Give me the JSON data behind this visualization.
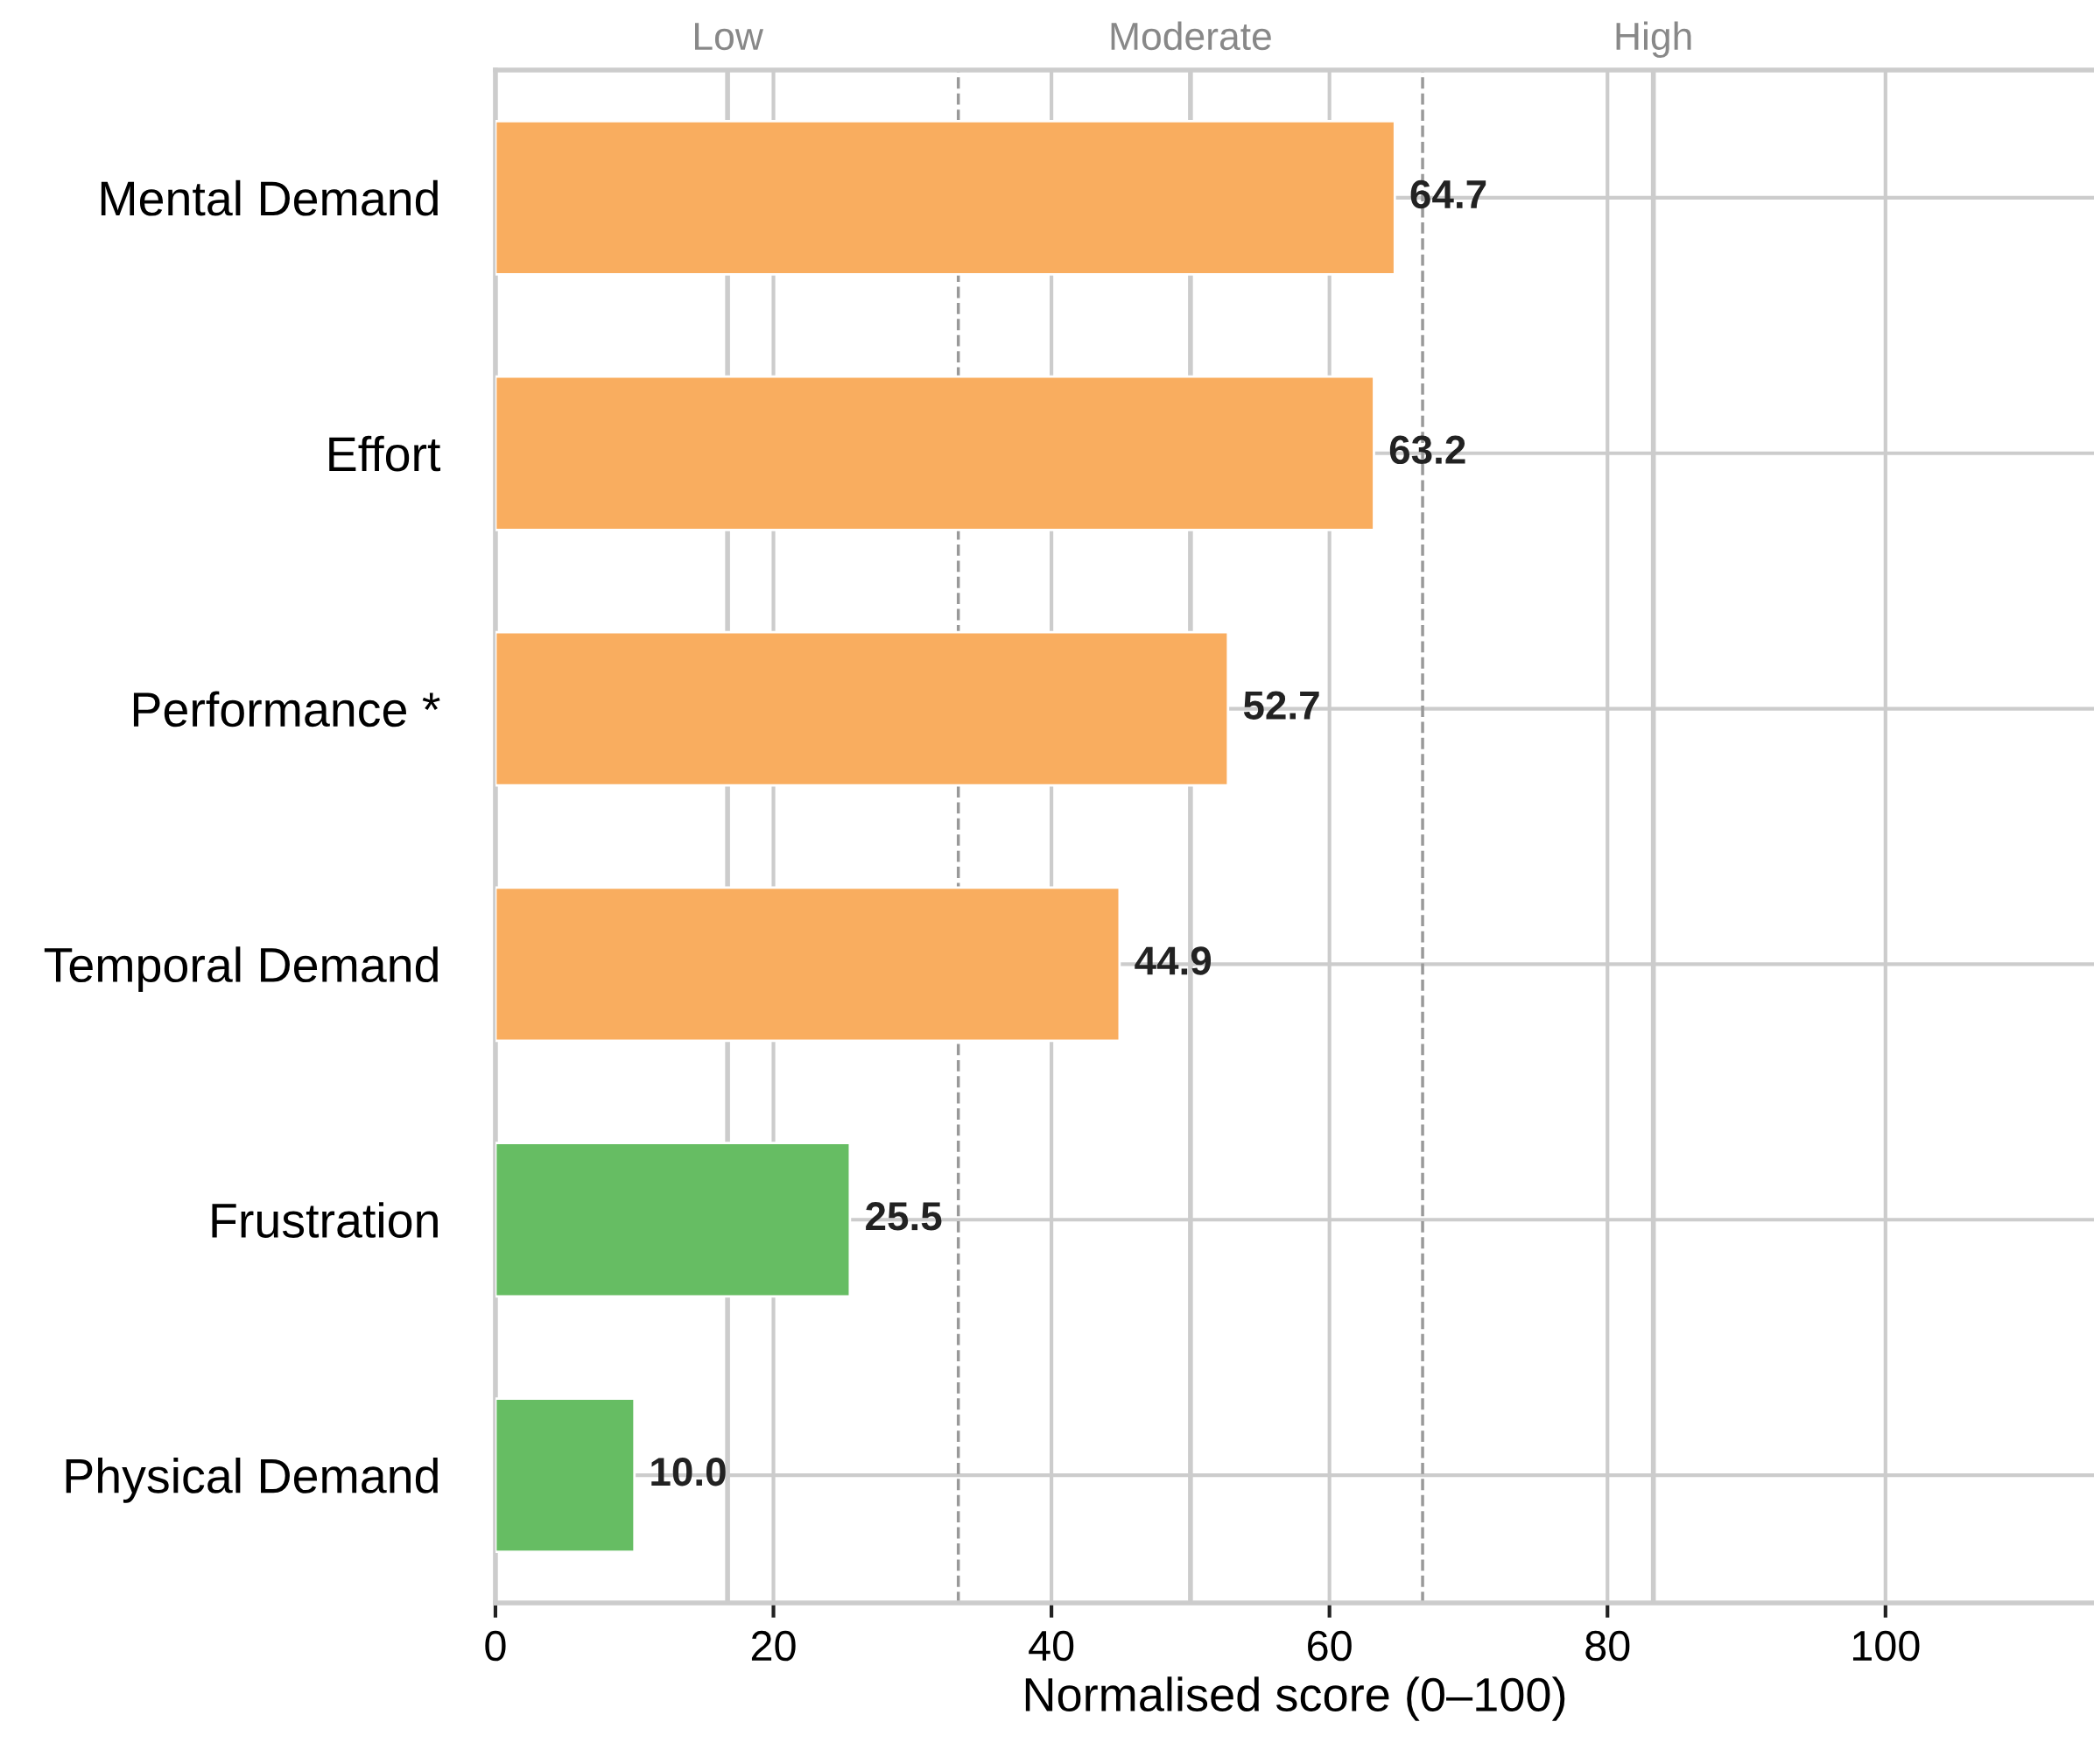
{
  "chart_data": {
    "type": "bar",
    "orientation": "horizontal",
    "xlabel": "Normalised score (0–100)",
    "categories": [
      "Mental Demand",
      "Effort",
      "Performance *",
      "Temporal Demand",
      "Frustration",
      "Physical Demand"
    ],
    "values": [
      64.7,
      63.2,
      52.7,
      44.9,
      25.5,
      10.0
    ],
    "colors": [
      "#f9ad5f",
      "#f9ad5f",
      "#f9ad5f",
      "#f9ad5f",
      "#66bd63",
      "#66bd63"
    ],
    "value_labels": [
      "64.7",
      "63.2",
      "52.7",
      "44.9",
      "25.5",
      "10.0"
    ],
    "xlim": [
      0,
      115
    ],
    "xticks": [
      0,
      20,
      40,
      60,
      80,
      100
    ],
    "ref_lines": [
      {
        "axis": "x",
        "value": 16.7,
        "color": "#cccccc",
        "line_style": "solid",
        "label": "Low"
      },
      {
        "axis": "x",
        "value": 50,
        "color": "#cccccc",
        "line_style": "solid",
        "label": "Moderate"
      },
      {
        "axis": "x",
        "value": 83.3,
        "color": "#cccccc",
        "line_style": "solid",
        "label": "High"
      },
      {
        "axis": "x",
        "value": 33.3,
        "color": "#999999",
        "line_style": "dashed"
      },
      {
        "axis": "x",
        "value": 66.7,
        "color": "#999999",
        "line_style": "dashed"
      }
    ],
    "grid": true
  }
}
